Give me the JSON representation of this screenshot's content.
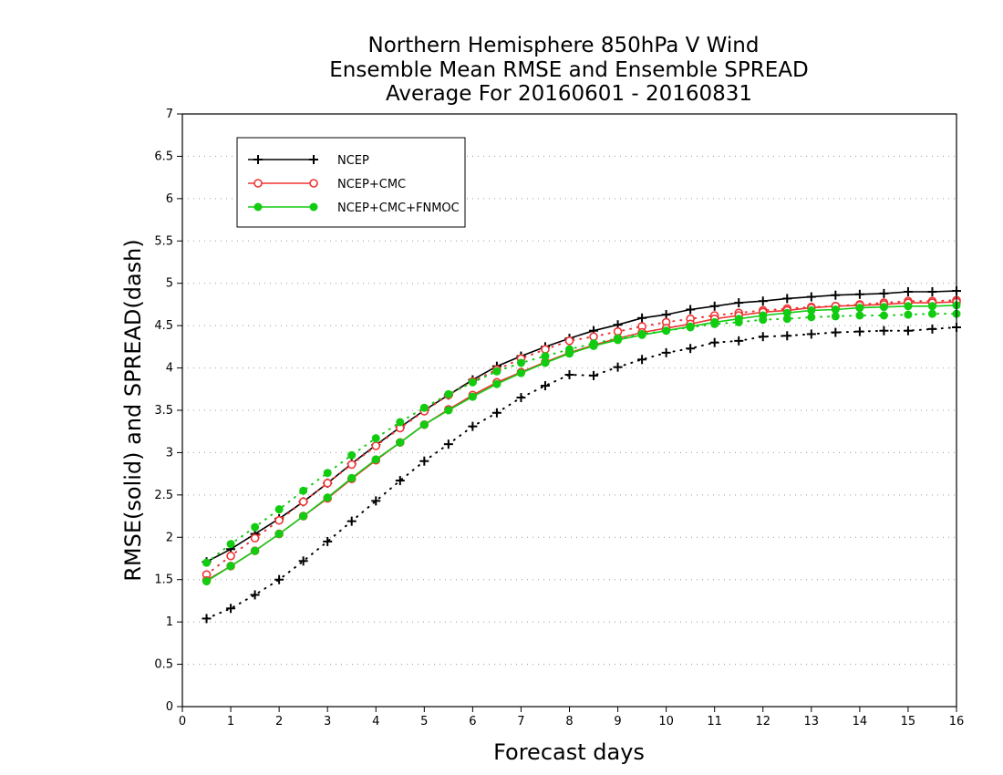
{
  "chart_data": {
    "type": "line",
    "title_lines": [
      "Northern Hemisphere 850hPa V Wind",
      "Ensemble Mean RMSE and Ensemble SPREAD",
      "Average For 20160601 - 20160831"
    ],
    "xlabel": "Forecast days",
    "ylabel": "RMSE(solid) and SPREAD(dash)",
    "xlim": [
      0,
      16
    ],
    "ylim": [
      0,
      7
    ],
    "x_ticks": [
      "0",
      "1",
      "2",
      "3",
      "4",
      "5",
      "6",
      "7",
      "8",
      "9",
      "10",
      "11",
      "12",
      "13",
      "14",
      "15",
      "16"
    ],
    "y_ticks": [
      "0",
      "0.5",
      "1",
      "1.5",
      "2",
      "2.5",
      "3",
      "3.5",
      "4",
      "4.5",
      "5",
      "5.5",
      "6",
      "6.5",
      "7"
    ],
    "grid": "horizontal dotted",
    "legend_position": "top-left",
    "x": [
      0.5,
      1,
      1.5,
      2,
      2.5,
      3,
      3.5,
      4,
      4.5,
      5,
      5.5,
      6,
      6.5,
      7,
      7.5,
      8,
      8.5,
      9,
      9.5,
      10,
      10.5,
      11,
      11.5,
      12,
      12.5,
      13,
      13.5,
      14,
      14.5,
      15,
      15.5,
      16
    ],
    "series": [
      {
        "name": "NCEP",
        "color": "#000000",
        "marker": "plus",
        "rmse": [
          1.71,
          1.86,
          2.04,
          2.22,
          2.42,
          2.64,
          2.87,
          3.09,
          3.3,
          3.5,
          3.68,
          3.86,
          4.02,
          4.14,
          4.25,
          4.35,
          4.44,
          4.51,
          4.59,
          4.63,
          4.69,
          4.73,
          4.77,
          4.79,
          4.82,
          4.84,
          4.86,
          4.87,
          4.88,
          4.9,
          4.9,
          4.91
        ],
        "spread": [
          1.04,
          1.16,
          1.32,
          1.5,
          1.72,
          1.95,
          2.19,
          2.43,
          2.67,
          2.9,
          3.1,
          3.31,
          3.47,
          3.65,
          3.79,
          3.92,
          3.91,
          4.01,
          4.1,
          4.18,
          4.23,
          4.3,
          4.32,
          4.37,
          4.38,
          4.4,
          4.42,
          4.43,
          4.44,
          4.44,
          4.46,
          4.48
        ]
      },
      {
        "name": "NCEP+CMC",
        "color": "#ee3333",
        "marker": "open-circle",
        "rmse": [
          1.49,
          1.66,
          1.84,
          2.04,
          2.25,
          2.46,
          2.69,
          2.91,
          3.12,
          3.33,
          3.51,
          3.68,
          3.83,
          3.95,
          4.07,
          4.18,
          4.27,
          4.35,
          4.42,
          4.47,
          4.52,
          4.58,
          4.62,
          4.66,
          4.68,
          4.71,
          4.73,
          4.74,
          4.75,
          4.77,
          4.77,
          4.78
        ],
        "spread": [
          1.56,
          1.78,
          1.99,
          2.2,
          2.42,
          2.64,
          2.86,
          3.08,
          3.29,
          3.49,
          3.68,
          3.84,
          3.98,
          4.11,
          4.22,
          4.32,
          4.37,
          4.43,
          4.49,
          4.54,
          4.58,
          4.62,
          4.65,
          4.68,
          4.7,
          4.72,
          4.73,
          4.75,
          4.77,
          4.79,
          4.79,
          4.8
        ]
      },
      {
        "name": "NCEP+CMC+FNMOC",
        "color": "#11cc11",
        "marker": "filled-circle",
        "rmse": [
          1.48,
          1.66,
          1.84,
          2.04,
          2.25,
          2.47,
          2.7,
          2.92,
          3.12,
          3.33,
          3.5,
          3.66,
          3.81,
          3.94,
          4.06,
          4.17,
          4.26,
          4.33,
          4.39,
          4.44,
          4.49,
          4.54,
          4.58,
          4.62,
          4.65,
          4.68,
          4.69,
          4.71,
          4.72,
          4.73,
          4.73,
          4.74
        ],
        "spread": [
          1.7,
          1.92,
          2.12,
          2.33,
          2.55,
          2.76,
          2.97,
          3.17,
          3.36,
          3.53,
          3.69,
          3.83,
          3.96,
          4.06,
          4.14,
          4.22,
          4.29,
          4.35,
          4.4,
          4.44,
          4.48,
          4.52,
          4.54,
          4.57,
          4.58,
          4.6,
          4.61,
          4.62,
          4.62,
          4.63,
          4.64,
          4.64
        ]
      }
    ]
  }
}
